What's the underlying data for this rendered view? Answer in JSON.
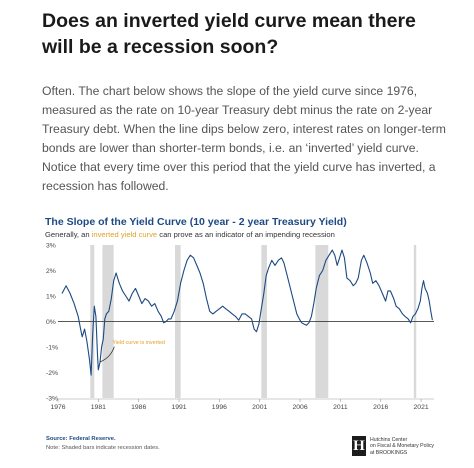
{
  "article": {
    "heading": "Does an inverted yield curve mean there will be a recession soon?",
    "paragraph": "Often. The chart below shows the slope of the yield curve since 1976, measured as the rate on 10-year Treasury debt minus the rate on 2-year Treasury debt. When the line dips below zero, interest rates on longer-term bonds are lower than shorter-term bonds, i.e. an ‘inverted’ yield curve. Notice that every time over this period that the yield curve has inverted, a recession has followed."
  },
  "chart_data": {
    "type": "line",
    "title": "The Slope of the Yield Curve (10 year - 2 year Treasury Yield)",
    "subtitle_prefix": "Generally, an ",
    "subtitle_highlight": "inverted yield curve",
    "subtitle_suffix": " can prove as an indicator of an impending recession",
    "xlim": [
      1976.0,
      2022.6
    ],
    "ylim": [
      -3,
      3
    ],
    "x_ticks": [
      1976,
      1981,
      1986,
      1991,
      1996,
      2001,
      2006,
      2011,
      2016,
      2021
    ],
    "y_ticks": [
      {
        "value": 3,
        "label": "3%"
      },
      {
        "value": 2,
        "label": "2%"
      },
      {
        "value": 1,
        "label": "1%"
      },
      {
        "value": 0,
        "label": "0%"
      },
      {
        "value": -1,
        "label": "-1%"
      },
      {
        "value": -2,
        "label": "-2%"
      },
      {
        "value": -3,
        "label": "-3%"
      }
    ],
    "grid": false,
    "recessions": [
      {
        "start": 1980.0,
        "end": 1980.5
      },
      {
        "start": 1981.5,
        "end": 1982.9
      },
      {
        "start": 1990.5,
        "end": 1991.2
      },
      {
        "start": 2001.2,
        "end": 2001.9
      },
      {
        "start": 2007.9,
        "end": 2009.5
      },
      {
        "start": 2020.1,
        "end": 2020.4
      }
    ],
    "series": [
      {
        "color": "#1c4a82",
        "points": [
          [
            1976.5,
            1.1
          ],
          [
            1977.0,
            1.4
          ],
          [
            1977.5,
            1.1
          ],
          [
            1978.0,
            0.7
          ],
          [
            1978.5,
            0.2
          ],
          [
            1978.8,
            -0.3
          ],
          [
            1979.0,
            -0.6
          ],
          [
            1979.3,
            -0.3
          ],
          [
            1979.6,
            -0.8
          ],
          [
            1979.9,
            -1.5
          ],
          [
            1980.1,
            -2.1
          ],
          [
            1980.3,
            -0.5
          ],
          [
            1980.5,
            0.6
          ],
          [
            1980.7,
            0.2
          ],
          [
            1980.9,
            -1.3
          ],
          [
            1981.0,
            -1.9
          ],
          [
            1981.2,
            -1.6
          ],
          [
            1981.4,
            -1.0
          ],
          [
            1981.6,
            -0.7
          ],
          [
            1981.8,
            0.1
          ],
          [
            1982.0,
            0.3
          ],
          [
            1982.3,
            0.4
          ],
          [
            1982.6,
            0.9
          ],
          [
            1982.9,
            1.6
          ],
          [
            1983.2,
            1.9
          ],
          [
            1983.6,
            1.5
          ],
          [
            1984.0,
            1.2
          ],
          [
            1984.4,
            1.0
          ],
          [
            1984.8,
            0.8
          ],
          [
            1985.2,
            1.1
          ],
          [
            1985.6,
            1.3
          ],
          [
            1986.0,
            1.0
          ],
          [
            1986.4,
            0.7
          ],
          [
            1986.8,
            0.9
          ],
          [
            1987.2,
            0.8
          ],
          [
            1987.6,
            0.6
          ],
          [
            1988.0,
            0.7
          ],
          [
            1988.4,
            0.4
          ],
          [
            1988.8,
            0.2
          ],
          [
            1989.1,
            -0.05
          ],
          [
            1989.4,
            0.0
          ],
          [
            1989.7,
            0.1
          ],
          [
            1990.0,
            0.1
          ],
          [
            1990.4,
            0.4
          ],
          [
            1990.8,
            0.8
          ],
          [
            1991.2,
            1.5
          ],
          [
            1991.6,
            2.0
          ],
          [
            1992.0,
            2.4
          ],
          [
            1992.4,
            2.6
          ],
          [
            1992.8,
            2.5
          ],
          [
            1993.2,
            2.2
          ],
          [
            1993.6,
            1.9
          ],
          [
            1994.0,
            1.5
          ],
          [
            1994.4,
            0.9
          ],
          [
            1994.8,
            0.4
          ],
          [
            1995.2,
            0.3
          ],
          [
            1995.6,
            0.4
          ],
          [
            1996.0,
            0.5
          ],
          [
            1996.4,
            0.6
          ],
          [
            1996.8,
            0.5
          ],
          [
            1997.2,
            0.4
          ],
          [
            1997.6,
            0.3
          ],
          [
            1998.0,
            0.2
          ],
          [
            1998.4,
            0.05
          ],
          [
            1998.8,
            0.3
          ],
          [
            1999.2,
            0.3
          ],
          [
            1999.6,
            0.2
          ],
          [
            2000.0,
            0.1
          ],
          [
            2000.3,
            -0.3
          ],
          [
            2000.6,
            -0.4
          ],
          [
            2000.9,
            -0.1
          ],
          [
            2001.2,
            0.5
          ],
          [
            2001.5,
            1.1
          ],
          [
            2001.8,
            1.8
          ],
          [
            2002.1,
            2.1
          ],
          [
            2002.5,
            2.4
          ],
          [
            2002.9,
            2.2
          ],
          [
            2003.3,
            2.4
          ],
          [
            2003.7,
            2.5
          ],
          [
            2004.0,
            2.3
          ],
          [
            2004.4,
            1.8
          ],
          [
            2004.8,
            1.3
          ],
          [
            2005.2,
            0.8
          ],
          [
            2005.6,
            0.3
          ],
          [
            2005.9,
            0.1
          ],
          [
            2006.2,
            -0.05
          ],
          [
            2006.5,
            -0.1
          ],
          [
            2006.8,
            -0.15
          ],
          [
            2007.1,
            -0.05
          ],
          [
            2007.4,
            0.2
          ],
          [
            2007.7,
            0.7
          ],
          [
            2008.0,
            1.3
          ],
          [
            2008.4,
            1.8
          ],
          [
            2008.8,
            2.0
          ],
          [
            2009.2,
            2.4
          ],
          [
            2009.6,
            2.6
          ],
          [
            2010.0,
            2.8
          ],
          [
            2010.3,
            2.6
          ],
          [
            2010.6,
            2.2
          ],
          [
            2010.9,
            2.5
          ],
          [
            2011.2,
            2.8
          ],
          [
            2011.5,
            2.5
          ],
          [
            2011.8,
            1.7
          ],
          [
            2012.2,
            1.6
          ],
          [
            2012.6,
            1.4
          ],
          [
            2012.9,
            1.5
          ],
          [
            2013.2,
            1.7
          ],
          [
            2013.6,
            2.4
          ],
          [
            2013.9,
            2.6
          ],
          [
            2014.3,
            2.3
          ],
          [
            2014.7,
            1.9
          ],
          [
            2015.0,
            1.5
          ],
          [
            2015.4,
            1.6
          ],
          [
            2015.8,
            1.4
          ],
          [
            2016.2,
            1.1
          ],
          [
            2016.6,
            0.8
          ],
          [
            2016.9,
            1.2
          ],
          [
            2017.2,
            1.2
          ],
          [
            2017.6,
            0.9
          ],
          [
            2017.9,
            0.6
          ],
          [
            2018.3,
            0.5
          ],
          [
            2018.7,
            0.3
          ],
          [
            2019.0,
            0.2
          ],
          [
            2019.4,
            0.1
          ],
          [
            2019.7,
            -0.05
          ],
          [
            2020.0,
            0.2
          ],
          [
            2020.3,
            0.3
          ],
          [
            2020.6,
            0.5
          ],
          [
            2020.9,
            0.8
          ],
          [
            2021.1,
            1.3
          ],
          [
            2021.3,
            1.6
          ],
          [
            2021.5,
            1.3
          ],
          [
            2021.8,
            1.1
          ],
          [
            2022.0,
            0.8
          ],
          [
            2022.2,
            0.4
          ],
          [
            2022.4,
            0.05
          ]
        ]
      }
    ],
    "annotations": [
      {
        "text": "Yield curve is inverted",
        "x": 1981.0,
        "y": -1.5
      }
    ],
    "source": "Source: Federal Reserve.",
    "note": "Note: Shaded bars indicate recession dates."
  },
  "branding": {
    "logo_letter": "H",
    "logo_lines": [
      "Hutchins Center",
      "on Fiscal & Monetary Policy",
      "at BROOKINGS"
    ]
  },
  "colors": {
    "line": "#1c4a82",
    "recession": "#d9d9d9",
    "highlight": "#e0a12a"
  }
}
